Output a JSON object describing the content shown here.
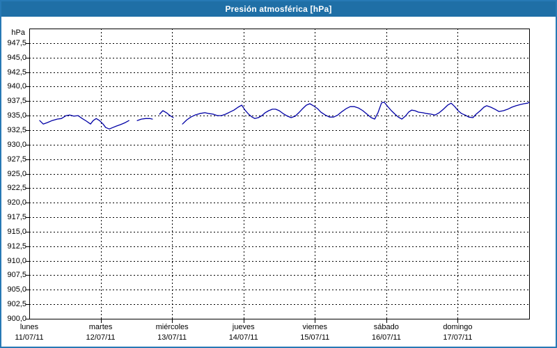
{
  "window": {
    "title": "Presión atmosférica [hPa]"
  },
  "colors": {
    "header_bg": "#1F6FA6",
    "page_border": "#2779B5",
    "line": "#0000A5",
    "grid": "#000000",
    "plot_bg": "#FFFFFF",
    "label_text": "#000000",
    "title_text": "#FFFFFF"
  },
  "chart_data": {
    "type": "line",
    "title": "Presión atmosférica [hPa]",
    "ylabel": "hPa",
    "ylim": [
      900,
      950
    ],
    "ytick_step": 2.5,
    "grid": "dashed",
    "legend": "none",
    "yticks": [
      {
        "value": 947.5,
        "label": "947,5"
      },
      {
        "value": 945.0,
        "label": "945,0"
      },
      {
        "value": 942.5,
        "label": "942,5"
      },
      {
        "value": 940.0,
        "label": "940,0"
      },
      {
        "value": 937.5,
        "label": "937,5"
      },
      {
        "value": 935.0,
        "label": "935,0"
      },
      {
        "value": 932.5,
        "label": "932,5"
      },
      {
        "value": 930.0,
        "label": "930,0"
      },
      {
        "value": 927.5,
        "label": "927,5"
      },
      {
        "value": 925.0,
        "label": "925,0"
      },
      {
        "value": 922.5,
        "label": "922,5"
      },
      {
        "value": 920.0,
        "label": "920,0"
      },
      {
        "value": 917.5,
        "label": "917,5"
      },
      {
        "value": 915.0,
        "label": "915,0"
      },
      {
        "value": 912.5,
        "label": "912,5"
      },
      {
        "value": 910.0,
        "label": "910,0"
      },
      {
        "value": 907.5,
        "label": "907,5"
      },
      {
        "value": 905.0,
        "label": "905,0"
      },
      {
        "value": 902.5,
        "label": "902,5"
      },
      {
        "value": 900.0,
        "label": "900,0"
      }
    ],
    "x_axis": {
      "unit": "hours_from_monday_00h",
      "range_hours": [
        0,
        168
      ],
      "days": [
        {
          "day": "lunes",
          "date": "11/07/11"
        },
        {
          "day": "martes",
          "date": "12/07/11"
        },
        {
          "day": "miércoles",
          "date": "13/07/11"
        },
        {
          "day": "jueves",
          "date": "14/07/11"
        },
        {
          "day": "viernes",
          "date": "15/07/11"
        },
        {
          "day": "sábado",
          "date": "16/07/11"
        },
        {
          "day": "domingo",
          "date": "17/07/11"
        }
      ]
    },
    "series": [
      {
        "name": "Presión atmosférica",
        "color": "#0000A5",
        "points": [
          [
            3.5,
            934.15
          ],
          [
            4.7,
            933.55
          ],
          [
            6.1,
            933.8
          ],
          [
            7.7,
            934.15
          ],
          [
            9.4,
            934.4
          ],
          [
            10.8,
            934.5
          ],
          [
            12.4,
            935.0
          ],
          [
            13.6,
            935.1
          ],
          [
            15.0,
            934.9
          ],
          [
            16.4,
            935.0
          ],
          [
            17.8,
            934.5
          ],
          [
            19.2,
            934.05
          ],
          [
            20.6,
            933.55
          ],
          [
            21.5,
            934.15
          ],
          [
            22.5,
            934.5
          ],
          [
            23.6,
            934.15
          ],
          [
            24.8,
            933.55
          ],
          [
            25.7,
            932.95
          ],
          [
            26.9,
            932.7
          ],
          [
            28.1,
            932.95
          ],
          [
            29.3,
            933.2
          ],
          [
            30.7,
            933.45
          ],
          [
            32.3,
            933.8
          ],
          [
            33.5,
            934.15
          ],
          null,
          [
            36.3,
            934.15
          ],
          [
            37.7,
            934.4
          ],
          [
            39.1,
            934.5
          ],
          [
            40.5,
            934.5
          ],
          [
            41.4,
            934.4
          ],
          null,
          [
            43.8,
            935.25
          ],
          [
            44.9,
            935.85
          ],
          [
            46.1,
            935.5
          ],
          [
            47.3,
            935.0
          ],
          [
            48.4,
            934.65
          ],
          null,
          [
            51.5,
            933.55
          ],
          [
            52.9,
            934.25
          ],
          [
            54.3,
            934.75
          ],
          [
            55.7,
            935.1
          ],
          [
            57.3,
            935.35
          ],
          [
            59.0,
            935.5
          ],
          [
            60.4,
            935.35
          ],
          [
            61.8,
            935.25
          ],
          [
            63.2,
            935.0
          ],
          [
            64.6,
            935.0
          ],
          [
            66.0,
            935.25
          ],
          [
            67.4,
            935.6
          ],
          [
            68.8,
            935.95
          ],
          [
            70.2,
            936.45
          ],
          [
            71.4,
            936.8
          ],
          [
            72.5,
            935.95
          ],
          [
            73.7,
            935.25
          ],
          [
            74.9,
            934.75
          ],
          [
            75.8,
            934.5
          ],
          [
            77.0,
            934.65
          ],
          [
            78.2,
            935.0
          ],
          [
            79.3,
            935.5
          ],
          [
            80.5,
            935.85
          ],
          [
            81.7,
            936.1
          ],
          [
            82.8,
            936.1
          ],
          [
            84.0,
            935.85
          ],
          [
            85.6,
            935.25
          ],
          [
            86.8,
            934.9
          ],
          [
            88.0,
            934.65
          ],
          [
            89.4,
            934.9
          ],
          [
            90.6,
            935.5
          ],
          [
            91.7,
            936.1
          ],
          [
            93.1,
            936.8
          ],
          [
            94.3,
            937.05
          ],
          [
            95.5,
            936.7
          ],
          [
            96.9,
            936.2
          ],
          [
            98.0,
            935.6
          ],
          [
            99.5,
            935.1
          ],
          [
            100.9,
            934.75
          ],
          [
            102.3,
            934.75
          ],
          [
            103.7,
            935.1
          ],
          [
            105.1,
            935.7
          ],
          [
            106.5,
            936.2
          ],
          [
            107.9,
            936.55
          ],
          [
            109.3,
            936.55
          ],
          [
            110.7,
            936.3
          ],
          [
            112.1,
            935.85
          ],
          [
            113.5,
            935.25
          ],
          [
            114.9,
            934.65
          ],
          [
            116.1,
            934.4
          ],
          [
            117.2,
            935.5
          ],
          [
            118.4,
            937.2
          ],
          [
            119.3,
            937.3
          ],
          [
            120.5,
            936.55
          ],
          [
            121.7,
            935.85
          ],
          [
            122.9,
            935.25
          ],
          [
            124.0,
            934.75
          ],
          [
            125.2,
            934.4
          ],
          [
            126.4,
            934.9
          ],
          [
            127.5,
            935.6
          ],
          [
            128.5,
            935.95
          ],
          [
            129.6,
            935.85
          ],
          [
            130.8,
            935.6
          ],
          [
            132.2,
            935.5
          ],
          [
            133.6,
            935.35
          ],
          [
            135.0,
            935.25
          ],
          [
            136.4,
            935.1
          ],
          [
            137.8,
            935.5
          ],
          [
            139.2,
            936.1
          ],
          [
            140.6,
            936.8
          ],
          [
            141.8,
            937.15
          ],
          [
            143.0,
            936.55
          ],
          [
            144.1,
            935.85
          ],
          [
            145.3,
            935.35
          ],
          [
            146.5,
            935.1
          ],
          [
            147.7,
            934.75
          ],
          [
            149.1,
            934.65
          ],
          [
            150.2,
            935.25
          ],
          [
            151.6,
            935.85
          ],
          [
            152.8,
            936.45
          ],
          [
            153.7,
            936.7
          ],
          [
            155.1,
            936.45
          ],
          [
            156.5,
            936.1
          ],
          [
            157.9,
            935.7
          ],
          [
            159.4,
            935.85
          ],
          [
            160.8,
            936.1
          ],
          [
            162.2,
            936.45
          ],
          [
            163.6,
            936.7
          ],
          [
            165.0,
            936.9
          ],
          [
            166.3,
            937.05
          ],
          [
            167.5,
            937.15
          ],
          [
            168.0,
            937.3
          ]
        ]
      }
    ]
  }
}
